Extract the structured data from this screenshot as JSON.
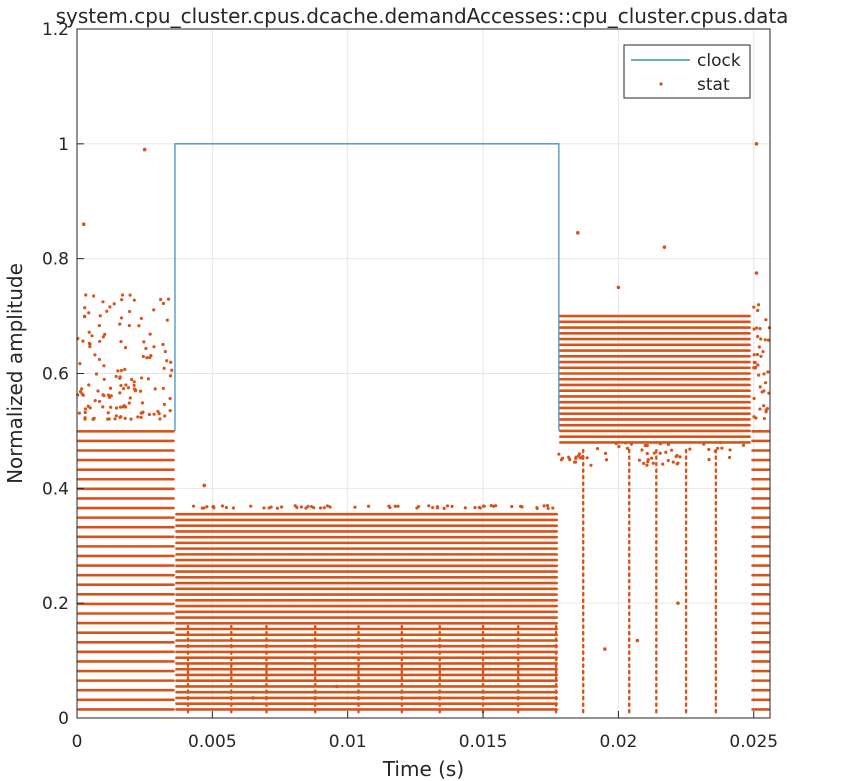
{
  "chart_data": {
    "type": "line",
    "title": "system.cpu_cluster.cpus.dcache.demandAccesses::cpu_cluster.cpus.data",
    "xlabel": "Time (s)",
    "ylabel": "Normalized amplitude",
    "xlim": [
      0,
      0.0256
    ],
    "ylim": [
      0,
      1.2
    ],
    "xticks": [
      0,
      0.005,
      0.01,
      0.015,
      0.02,
      0.025
    ],
    "xtick_labels": [
      "0",
      "0.005",
      "0.01",
      "0.015",
      "0.02",
      "0.025"
    ],
    "yticks": [
      0,
      0.2,
      0.4,
      0.6,
      0.8,
      1.0,
      1.2
    ],
    "ytick_labels": [
      "0",
      "0.2",
      "0.4",
      "0.6",
      "0.8",
      "1",
      "1.2"
    ],
    "grid": true,
    "legend_position": "top-right",
    "series": [
      {
        "name": "clock",
        "style": "line",
        "color": "#4a90c2",
        "legend_color": "#138a7a",
        "x": [
          0.00362,
          0.00362,
          0.0178,
          0.0178
        ],
        "y": [
          0.5,
          1.0,
          1.0,
          0.5
        ]
      },
      {
        "name": "stat",
        "style": "markers",
        "color": "#d95319",
        "segments": [
          {
            "x_range": [
              0.0,
              0.00362
            ],
            "level_max": 0.51,
            "level_step": 0.0167
          },
          {
            "x_range": [
              0.00362,
              0.0178
            ],
            "level_max": 0.36,
            "level_step": 0.01
          },
          {
            "x_range": [
              0.0178,
              0.0249
            ],
            "level_max": 0.7,
            "level_step": 0.01,
            "level_min": 0.48
          },
          {
            "x_range": [
              0.0249,
              0.0256
            ],
            "level_max": 0.51,
            "level_step": 0.0167
          }
        ],
        "outliers": [
          {
            "x": 0.00025,
            "y": 0.86
          },
          {
            "x": 0.0025,
            "y": 0.99
          },
          {
            "x": 0.0047,
            "y": 0.405
          },
          {
            "x": 0.0185,
            "y": 0.845
          },
          {
            "x": 0.02,
            "y": 0.75
          },
          {
            "x": 0.0217,
            "y": 0.82
          },
          {
            "x": 0.0251,
            "y": 1.0
          },
          {
            "x": 0.0251,
            "y": 0.775
          },
          {
            "x": 0.0065,
            "y": 0.035
          },
          {
            "x": 0.0096,
            "y": 0.055
          },
          {
            "x": 0.0195,
            "y": 0.12
          },
          {
            "x": 0.0207,
            "y": 0.135
          },
          {
            "x": 0.0222,
            "y": 0.2
          }
        ],
        "vertical_columns": [
          {
            "x": 0.0041,
            "y_min": 0.0,
            "y_max": 0.16
          },
          {
            "x": 0.0057,
            "y_min": 0.0,
            "y_max": 0.16
          },
          {
            "x": 0.007,
            "y_min": 0.0,
            "y_max": 0.16
          },
          {
            "x": 0.0088,
            "y_min": 0.0,
            "y_max": 0.16
          },
          {
            "x": 0.0104,
            "y_min": 0.0,
            "y_max": 0.16
          },
          {
            "x": 0.012,
            "y_min": 0.0,
            "y_max": 0.16
          },
          {
            "x": 0.0134,
            "y_min": 0.0,
            "y_max": 0.16
          },
          {
            "x": 0.015,
            "y_min": 0.0,
            "y_max": 0.16
          },
          {
            "x": 0.0163,
            "y_min": 0.0,
            "y_max": 0.16
          },
          {
            "x": 0.0177,
            "y_min": 0.0,
            "y_max": 0.16
          },
          {
            "x": 0.0187,
            "y_min": 0.0,
            "y_max": 0.47
          },
          {
            "x": 0.0204,
            "y_min": 0.0,
            "y_max": 0.47
          },
          {
            "x": 0.0214,
            "y_min": 0.0,
            "y_max": 0.47
          },
          {
            "x": 0.0225,
            "y_min": 0.0,
            "y_max": 0.47
          },
          {
            "x": 0.0236,
            "y_min": 0.0,
            "y_max": 0.47
          }
        ]
      }
    ]
  }
}
